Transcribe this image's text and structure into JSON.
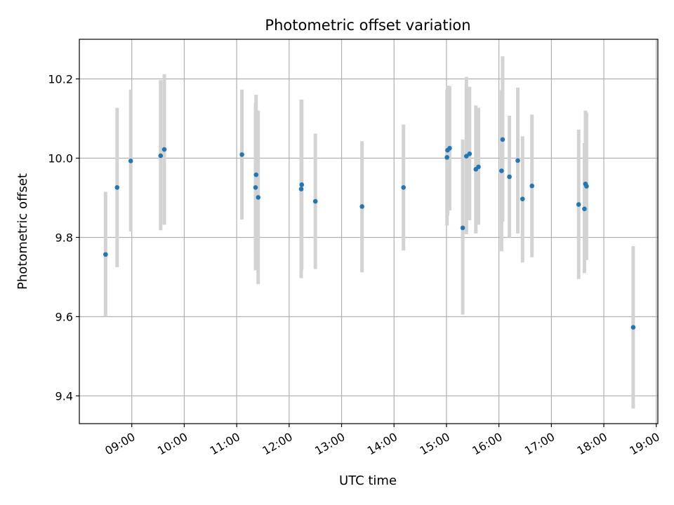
{
  "chart_data": {
    "type": "scatter",
    "title": "Photometric offset variation",
    "xlabel": "UTC time",
    "ylabel": "Photometric offset",
    "x_tick_labels": [
      "09:00",
      "10:00",
      "11:00",
      "12:00",
      "13:00",
      "14:00",
      "15:00",
      "16:00",
      "17:00",
      "18:00",
      "19:00"
    ],
    "x_tick_hours": [
      9,
      10,
      11,
      12,
      13,
      14,
      15,
      16,
      17,
      18,
      19
    ],
    "xlim_hours": [
      8.0,
      19.03
    ],
    "y_ticks": [
      9.4,
      9.6,
      9.8,
      10.0,
      10.2
    ],
    "y_tick_labels": [
      "9.4",
      "9.6",
      "9.8",
      "10.0",
      "10.2"
    ],
    "ylim": [
      9.33,
      10.3
    ],
    "grid": true,
    "point_color": "#1f77b4",
    "errorbar_color": "#d3d3d3",
    "points": [
      {
        "t": 8.5,
        "y": 9.757,
        "lo": 9.6,
        "hi": 9.915
      },
      {
        "t": 8.72,
        "y": 9.926,
        "lo": 9.725,
        "hi": 10.127
      },
      {
        "t": 8.98,
        "y": 9.993,
        "lo": 9.815,
        "hi": 10.173
      },
      {
        "t": 9.55,
        "y": 10.006,
        "lo": 9.818,
        "hi": 10.197
      },
      {
        "t": 9.62,
        "y": 10.022,
        "lo": 9.832,
        "hi": 10.212
      },
      {
        "t": 11.1,
        "y": 10.009,
        "lo": 9.845,
        "hi": 10.173
      },
      {
        "t": 11.36,
        "y": 9.926,
        "lo": 9.717,
        "hi": 10.139
      },
      {
        "t": 11.37,
        "y": 9.958,
        "lo": 9.755,
        "hi": 10.16
      },
      {
        "t": 11.41,
        "y": 9.901,
        "lo": 9.682,
        "hi": 10.12
      },
      {
        "t": 12.23,
        "y": 9.922,
        "lo": 9.697,
        "hi": 10.148
      },
      {
        "t": 12.24,
        "y": 9.933,
        "lo": 9.718,
        "hi": 10.147
      },
      {
        "t": 12.5,
        "y": 9.891,
        "lo": 9.72,
        "hi": 10.062
      },
      {
        "t": 13.39,
        "y": 9.878,
        "lo": 9.712,
        "hi": 10.043
      },
      {
        "t": 14.18,
        "y": 9.926,
        "lo": 9.767,
        "hi": 10.085
      },
      {
        "t": 15.01,
        "y": 10.002,
        "lo": 9.83,
        "hi": 10.173
      },
      {
        "t": 15.02,
        "y": 10.02,
        "lo": 9.855,
        "hi": 10.183
      },
      {
        "t": 15.06,
        "y": 10.025,
        "lo": 9.868,
        "hi": 10.182
      },
      {
        "t": 15.31,
        "y": 9.824,
        "lo": 9.605,
        "hi": 10.047
      },
      {
        "t": 15.38,
        "y": 10.005,
        "lo": 9.808,
        "hi": 10.205
      },
      {
        "t": 15.44,
        "y": 10.011,
        "lo": 9.843,
        "hi": 10.18
      },
      {
        "t": 15.56,
        "y": 9.972,
        "lo": 9.81,
        "hi": 10.133
      },
      {
        "t": 15.61,
        "y": 9.978,
        "lo": 9.832,
        "hi": 10.127
      },
      {
        "t": 16.05,
        "y": 9.968,
        "lo": 9.765,
        "hi": 10.172
      },
      {
        "t": 16.07,
        "y": 10.047,
        "lo": 9.84,
        "hi": 10.257
      },
      {
        "t": 16.2,
        "y": 9.953,
        "lo": 9.8,
        "hi": 10.107
      },
      {
        "t": 16.36,
        "y": 9.994,
        "lo": 9.81,
        "hi": 10.178
      },
      {
        "t": 16.45,
        "y": 9.897,
        "lo": 9.737,
        "hi": 10.055
      },
      {
        "t": 16.63,
        "y": 9.93,
        "lo": 9.75,
        "hi": 10.11
      },
      {
        "t": 17.52,
        "y": 9.883,
        "lo": 9.695,
        "hi": 10.072
      },
      {
        "t": 17.63,
        "y": 9.872,
        "lo": 9.71,
        "hi": 10.038
      },
      {
        "t": 17.65,
        "y": 9.935,
        "lo": 9.743,
        "hi": 10.12
      },
      {
        "t": 17.67,
        "y": 9.929,
        "lo": 9.743,
        "hi": 10.115
      },
      {
        "t": 18.56,
        "y": 9.573,
        "lo": 9.368,
        "hi": 9.778
      }
    ]
  }
}
